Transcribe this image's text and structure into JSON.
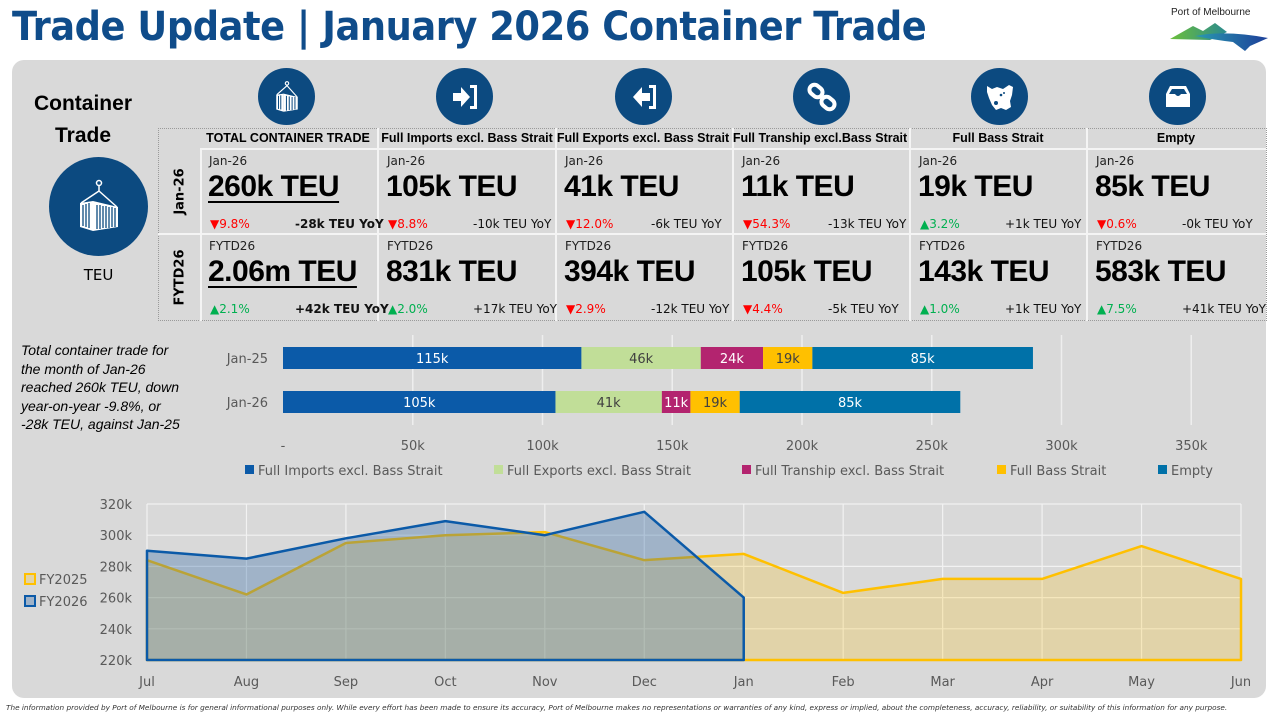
{
  "header": {
    "title": "Trade Update | January 2026 Container Trade",
    "logo_text": "Port of Melbourne"
  },
  "side": {
    "title_line1": "Container",
    "title_line2": "Trade",
    "icon": "container-crane-icon",
    "unit": "TEU"
  },
  "row_labels": [
    "Jan-26",
    "FYTD26"
  ],
  "columns": [
    {
      "icon": "container-crane-icon",
      "header": "TOTAL CONTAINER TRADE",
      "month": {
        "period": "Jan-26",
        "value": "260k TEU",
        "direction": "down",
        "pct": "9.8%",
        "yoy": "-28k TEU YoY"
      },
      "fytd": {
        "period": "FYTD26",
        "value": "2.06m TEU",
        "direction": "up",
        "pct": "2.1%",
        "yoy": "+42k TEU YoY"
      }
    },
    {
      "icon": "import-arrow-icon",
      "header": "Full Imports excl. Bass Strait",
      "month": {
        "period": "Jan-26",
        "value": "105k TEU",
        "direction": "down",
        "pct": "8.8%",
        "yoy": "-10k TEU YoY"
      },
      "fytd": {
        "period": "FYTD26",
        "value": "831k TEU",
        "direction": "up",
        "pct": "2.0%",
        "yoy": "+17k TEU YoY"
      }
    },
    {
      "icon": "export-arrow-icon",
      "header": "Full Exports excl. Bass Strait",
      "month": {
        "period": "Jan-26",
        "value": "41k TEU",
        "direction": "down",
        "pct": "12.0%",
        "yoy": "-6k TEU YoY"
      },
      "fytd": {
        "period": "FYTD26",
        "value": "394k TEU",
        "direction": "down",
        "pct": "2.9%",
        "yoy": "-12k TEU YoY"
      }
    },
    {
      "icon": "chain-link-icon",
      "header": "Full Tranship excl.Bass Strait",
      "month": {
        "period": "Jan-26",
        "value": "11k TEU",
        "direction": "down",
        "pct": "54.3%",
        "yoy": "-13k TEU YoY"
      },
      "fytd": {
        "period": "FYTD26",
        "value": "105k TEU",
        "direction": "down",
        "pct": "4.4%",
        "yoy": "-5k TEU YoY"
      }
    },
    {
      "icon": "tasmania-map-icon",
      "header": "Full Bass Strait",
      "month": {
        "period": "Jan-26",
        "value": "19k TEU",
        "direction": "up",
        "pct": "3.2%",
        "yoy": "+1k TEU YoY"
      },
      "fytd": {
        "period": "FYTD26",
        "value": "143k TEU",
        "direction": "up",
        "pct": "1.0%",
        "yoy": "+1k TEU YoY"
      }
    },
    {
      "icon": "inbox-tray-icon",
      "header": "Empty",
      "month": {
        "period": "Jan-26",
        "value": "85k TEU",
        "direction": "down",
        "pct": "0.6%",
        "yoy": "-0k TEU YoY"
      },
      "fytd": {
        "period": "FYTD26",
        "value": "583k TEU",
        "direction": "up",
        "pct": "7.5%",
        "yoy": "+41k TEU YoY"
      }
    }
  ],
  "arrows": {
    "up": "▲",
    "down": "▼"
  },
  "colors": {
    "brand_blue": "#0f4c8a",
    "icon_blue": "#0c4a80",
    "down_red": "#ff0000",
    "up_green": "#00b050"
  },
  "note": "Total container trade for the month of Jan-26 reached 260k TEU, down year-on-year -9.8%, or -28k TEU, against Jan-25",
  "chart_data": [
    {
      "type": "bar",
      "orientation": "horizontal-stacked",
      "title": "",
      "categories": [
        "Jan-25",
        "Jan-26"
      ],
      "series": [
        {
          "name": "Full Imports excl. Bass Strait",
          "color": "#0b5aa8",
          "values": [
            115,
            105
          ],
          "labels": [
            "115k",
            "105k"
          ]
        },
        {
          "name": "Full Exports excl. Bass Strait",
          "color": "#c1de98",
          "values": [
            46,
            41
          ],
          "labels": [
            "46k",
            "41k"
          ]
        },
        {
          "name": "Full Tranship excl. Bass Strait",
          "color": "#b3246f",
          "values": [
            24,
            11
          ],
          "labels": [
            "24k",
            "11k"
          ]
        },
        {
          "name": "Full Bass Strait",
          "color": "#ffc000",
          "values": [
            19,
            19
          ],
          "labels": [
            "19k",
            "19k"
          ]
        },
        {
          "name": "Empty",
          "color": "#0071a8",
          "values": [
            85,
            85
          ],
          "labels": [
            "85k",
            "85k"
          ]
        }
      ],
      "xlim": [
        0,
        350
      ],
      "xticks": [
        "-",
        "50k",
        "100k",
        "150k",
        "200k",
        "250k",
        "300k",
        "350k"
      ],
      "grid": true,
      "legend": "bottom"
    },
    {
      "type": "area",
      "title": "",
      "x": [
        "Jul",
        "Aug",
        "Sep",
        "Oct",
        "Nov",
        "Dec",
        "Jan",
        "Feb",
        "Mar",
        "Apr",
        "May",
        "Jun"
      ],
      "series": [
        {
          "name": "FY2025",
          "color": "#ffc000",
          "values": [
            284,
            262,
            295,
            300,
            302,
            284,
            288,
            263,
            272,
            272,
            293,
            272
          ]
        },
        {
          "name": "FY2026",
          "color": "#0b5aa8",
          "values": [
            290,
            285,
            298,
            309,
            300,
            315,
            260
          ]
        }
      ],
      "unit": "k TEU",
      "ylim": [
        220,
        320
      ],
      "yticks": [
        "220k",
        "240k",
        "260k",
        "280k",
        "300k",
        "320k"
      ],
      "grid": true,
      "legend": "left"
    }
  ],
  "disclaimer": "The information provided by Port of Melbourne is for general informational purposes only. While every effort has been made to ensure its accuracy, Port of Melbourne makes no representations or warranties of any kind, express or implied, about the completeness, accuracy, reliability, or suitability of this information for any purpose."
}
